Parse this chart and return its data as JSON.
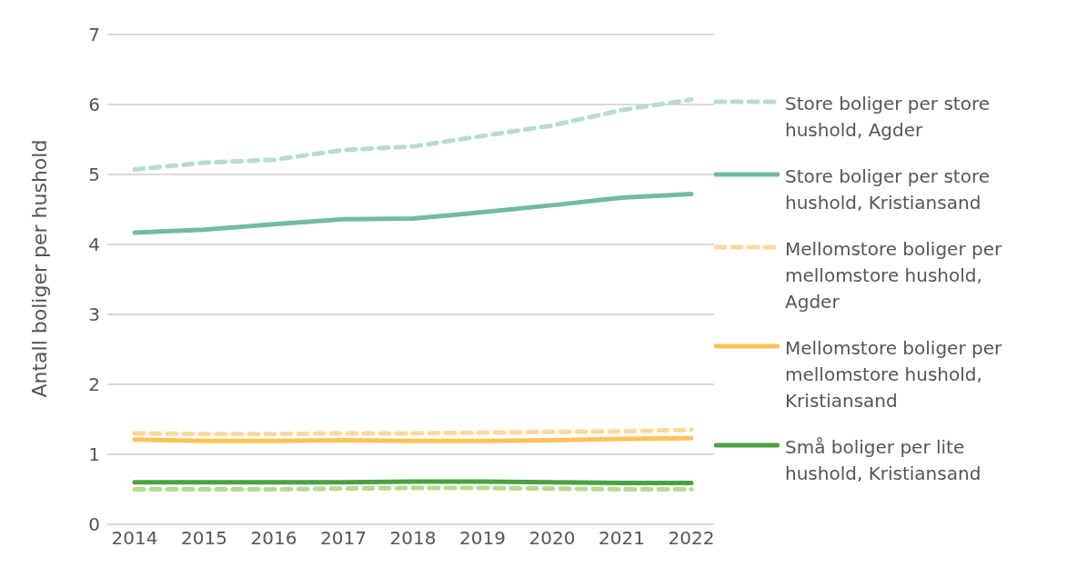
{
  "chart_data": {
    "type": "line",
    "ylabel": "Antall boliger per hushold",
    "categories": [
      "2014",
      "2015",
      "2016",
      "2017",
      "2018",
      "2019",
      "2020",
      "2021",
      "2022"
    ],
    "series": [
      {
        "name": "Store boliger per store hushold, Agder",
        "color": "#b5ddd0",
        "line_style": "dashed",
        "values": [
          5.07,
          5.17,
          5.21,
          5.35,
          5.4,
          5.55,
          5.7,
          5.92,
          6.07
        ]
      },
      {
        "name": "Store boliger per store hushold, Kristiansand",
        "color": "#72bba3",
        "line_style": "solid",
        "values": [
          4.17,
          4.21,
          4.29,
          4.36,
          4.37,
          4.46,
          4.56,
          4.67,
          4.72
        ]
      },
      {
        "name": "Mellomstore boliger per mellomstore hushold, Agder",
        "color": "#ffd899",
        "line_style": "dashed",
        "values": [
          1.3,
          1.29,
          1.29,
          1.3,
          1.3,
          1.31,
          1.32,
          1.33,
          1.35
        ]
      },
      {
        "name": "Mellomstore boliger per mellomstore hushold, Kristiansand",
        "color": "#ffc257",
        "line_style": "solid",
        "values": [
          1.21,
          1.19,
          1.19,
          1.2,
          1.19,
          1.19,
          1.2,
          1.22,
          1.23
        ]
      },
      {
        "name": "Små boliger per lite hushold, Kristiansand",
        "color": "#4aa343",
        "line_style": "solid",
        "values": [
          0.6,
          0.6,
          0.6,
          0.6,
          0.61,
          0.61,
          0.6,
          0.59,
          0.59
        ]
      },
      {
        "color": "#b6da8e",
        "line_style": "dashed",
        "values": [
          0.5,
          0.5,
          0.5,
          0.51,
          0.52,
          0.52,
          0.51,
          0.5,
          0.5
        ]
      }
    ],
    "ylim": [
      0,
      7
    ],
    "yticks": [
      0,
      1,
      2,
      3,
      4,
      5,
      6,
      7
    ],
    "grid": "y",
    "legend": "right",
    "marker": "none"
  }
}
